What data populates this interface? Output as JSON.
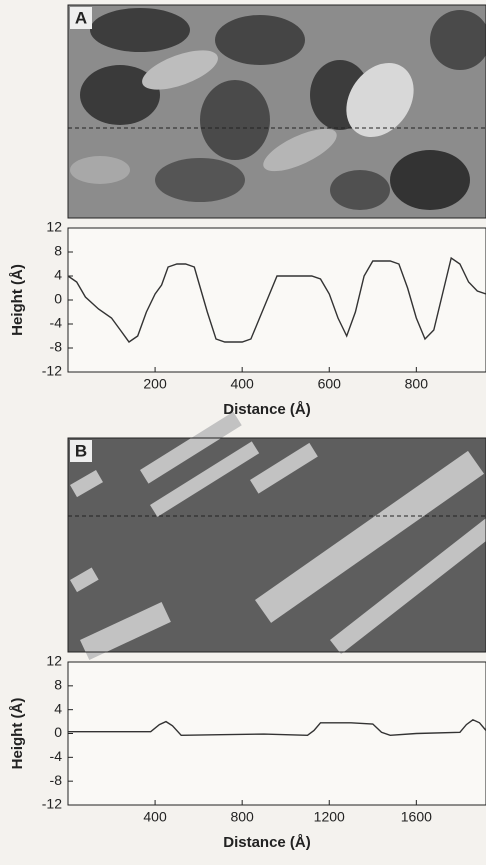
{
  "panel_labels": [
    "A",
    "B"
  ],
  "chart_data": [
    {
      "type": "line",
      "x_label": "Distance (Å)",
      "y_label": "Height (Å)",
      "color": "#333333",
      "xlim": [
        0,
        960
      ],
      "xticks": [
        200,
        400,
        600,
        800
      ],
      "ylim": [
        -12,
        12
      ],
      "yticks": [
        12,
        8,
        4,
        0,
        -4,
        -8,
        -12
      ],
      "x": [
        0,
        20,
        40,
        70,
        100,
        120,
        140,
        160,
        180,
        200,
        215,
        230,
        250,
        270,
        290,
        300,
        320,
        340,
        360,
        400,
        420,
        440,
        460,
        480,
        520,
        560,
        580,
        600,
        620,
        640,
        660,
        680,
        700,
        740,
        760,
        780,
        800,
        820,
        840,
        860,
        880,
        900,
        920,
        940,
        960
      ],
      "values": [
        4,
        3,
        0.5,
        -1.5,
        -3,
        -5,
        -7,
        -6,
        -2,
        1,
        2.5,
        5.5,
        6,
        6,
        5.5,
        3,
        -2,
        -6.5,
        -7,
        -7,
        -6.5,
        -3,
        0.5,
        4,
        4,
        4,
        3.5,
        1,
        -3,
        -6,
        -2,
        4,
        6.5,
        6.5,
        6,
        2,
        -3,
        -6.5,
        -5,
        1,
        7,
        6,
        3,
        1.5,
        1
      ]
    },
    {
      "type": "line",
      "x_label": "Distance (Å)",
      "y_label": "Height (Å)",
      "color": "#333333",
      "xlim": [
        0,
        1920
      ],
      "xticks": [
        400,
        800,
        1200,
        1600
      ],
      "ylim": [
        -12,
        12
      ],
      "yticks": [
        12,
        8,
        4,
        0,
        -4,
        -8,
        -12
      ],
      "x": [
        0,
        200,
        380,
        420,
        450,
        480,
        520,
        700,
        900,
        1100,
        1130,
        1160,
        1300,
        1400,
        1440,
        1480,
        1600,
        1800,
        1830,
        1860,
        1890,
        1920
      ],
      "values": [
        0.3,
        0.3,
        0.3,
        1.5,
        2,
        1.3,
        -0.3,
        -0.2,
        -0.1,
        -0.3,
        0.5,
        1.8,
        1.8,
        1.6,
        0.2,
        -0.3,
        0,
        0.2,
        1.5,
        2.3,
        1.8,
        0.5
      ]
    }
  ]
}
